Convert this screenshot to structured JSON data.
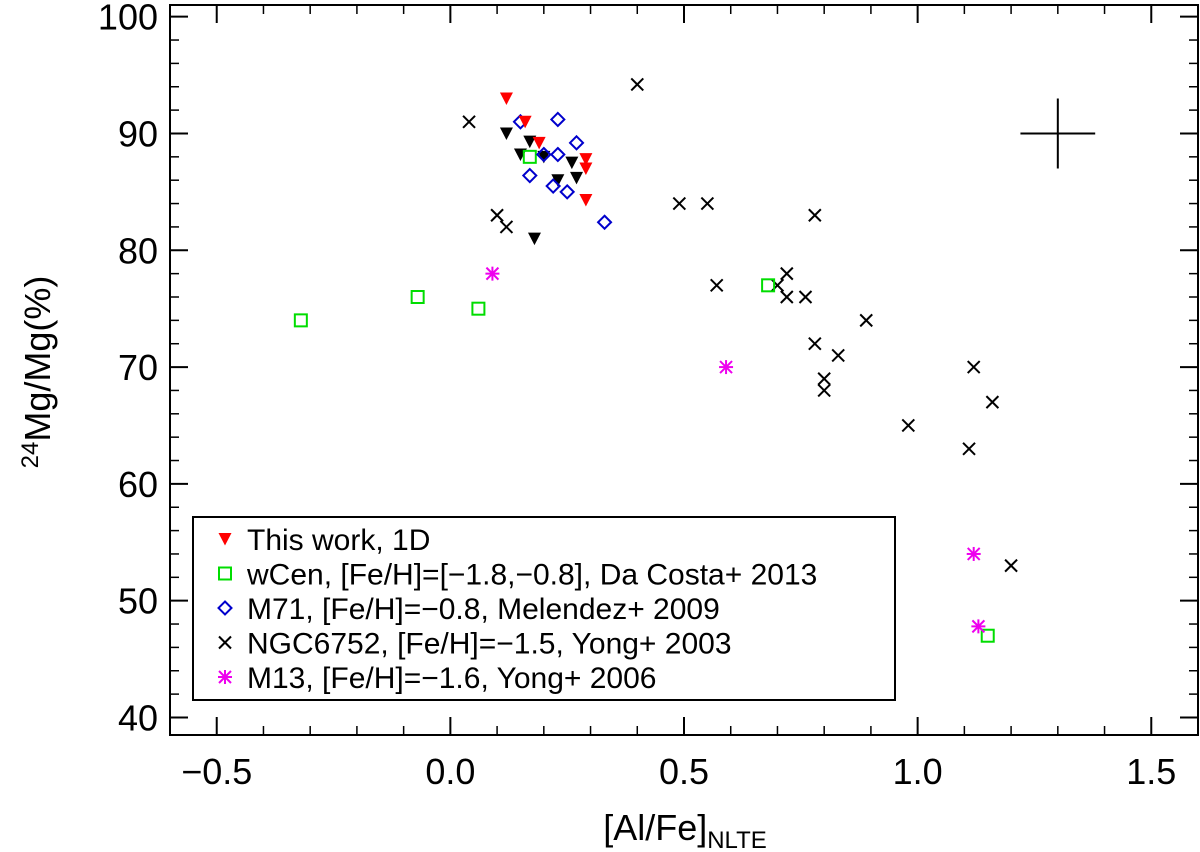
{
  "chart_data": {
    "type": "scatter",
    "title": "",
    "xlabel": {
      "main": "[Al/Fe]",
      "sub": "NLTE"
    },
    "ylabel": {
      "sup": "24",
      "main": "Mg/Mg(%)"
    },
    "xlim": [
      -0.6,
      1.6
    ],
    "ylim": [
      38.5,
      101
    ],
    "xticks": [
      {
        "value": -0.5,
        "label": "−0.5"
      },
      {
        "value": 0.0,
        "label": "0.0"
      },
      {
        "value": 0.5,
        "label": "0.5"
      },
      {
        "value": 1.0,
        "label": "1.0"
      },
      {
        "value": 1.5,
        "label": "1.5"
      }
    ],
    "yticks": [
      {
        "value": 40,
        "label": "40"
      },
      {
        "value": 50,
        "label": "50"
      },
      {
        "value": 60,
        "label": "60"
      },
      {
        "value": 70,
        "label": "70"
      },
      {
        "value": 80,
        "label": "80"
      },
      {
        "value": 90,
        "label": "90"
      },
      {
        "value": 100,
        "label": "100"
      }
    ],
    "x_minor_step": 0.1,
    "y_minor_step": 2,
    "grid": false,
    "legend_position": "bottom-left",
    "error_bar": {
      "x": 1.3,
      "y": 90,
      "xerr": 0.08,
      "yerr": 3
    },
    "series": [
      {
        "name": "This work, 1D",
        "marker": "filled-triangle-down",
        "color": "#ff0000",
        "points": [
          [
            0.12,
            93.0
          ],
          [
            0.16,
            91.0
          ],
          [
            0.19,
            89.2
          ],
          [
            0.29,
            87.8
          ],
          [
            0.29,
            87.0
          ],
          [
            0.29,
            84.3
          ]
        ]
      },
      {
        "name": "This work, 1D (black)",
        "legend": false,
        "marker": "filled-triangle-down",
        "color": "#000000",
        "points": [
          [
            0.12,
            90.0
          ],
          [
            0.17,
            89.3
          ],
          [
            0.15,
            88.2
          ],
          [
            0.2,
            88.0
          ],
          [
            0.26,
            87.5
          ],
          [
            0.23,
            86.0
          ],
          [
            0.27,
            86.2
          ],
          [
            0.18,
            81.0
          ]
        ]
      },
      {
        "name": "wCen, [Fe/H]=[−1.8,−0.8], Da Costa+ 2013",
        "marker": "open-square",
        "color": "#00dd00",
        "points": [
          [
            -0.32,
            74.0
          ],
          [
            -0.07,
            76.0
          ],
          [
            0.06,
            75.0
          ],
          [
            0.17,
            88.0
          ],
          [
            0.68,
            77.0
          ],
          [
            1.15,
            47.0
          ]
        ]
      },
      {
        "name": "M71, [Fe/H]=−0.8, Melendez+ 2009",
        "marker": "open-diamond",
        "color": "#0000cc",
        "points": [
          [
            0.15,
            91.0
          ],
          [
            0.23,
            91.2
          ],
          [
            0.27,
            89.2
          ],
          [
            0.2,
            88.2
          ],
          [
            0.23,
            88.2
          ],
          [
            0.17,
            86.4
          ],
          [
            0.22,
            85.5
          ],
          [
            0.25,
            85.0
          ],
          [
            0.33,
            82.4
          ]
        ]
      },
      {
        "name": "NGC6752, [Fe/H]=−1.5, Yong+ 2003",
        "marker": "x",
        "color": "#000000",
        "points": [
          [
            0.04,
            91.0
          ],
          [
            0.4,
            94.2
          ],
          [
            0.1,
            83.0
          ],
          [
            0.12,
            82.0
          ],
          [
            0.49,
            84.0
          ],
          [
            0.55,
            84.0
          ],
          [
            0.57,
            77.0
          ],
          [
            0.7,
            77.0
          ],
          [
            0.72,
            78.0
          ],
          [
            0.72,
            76.0
          ],
          [
            0.76,
            76.0
          ],
          [
            0.78,
            83.0
          ],
          [
            0.78,
            72.0
          ],
          [
            0.83,
            71.0
          ],
          [
            0.8,
            69.0
          ],
          [
            0.8,
            68.0
          ],
          [
            0.89,
            74.0
          ],
          [
            0.98,
            65.0
          ],
          [
            1.12,
            70.0
          ],
          [
            1.16,
            67.0
          ],
          [
            1.11,
            63.0
          ],
          [
            1.2,
            53.0
          ]
        ]
      },
      {
        "name": "M13, [Fe/H]=−1.6, Yong+ 2006",
        "marker": "asterisk",
        "color": "#ee00ee",
        "points": [
          [
            0.09,
            78.0
          ],
          [
            0.59,
            70.0
          ],
          [
            1.12,
            54.0
          ],
          [
            1.13,
            47.8
          ]
        ]
      }
    ]
  }
}
